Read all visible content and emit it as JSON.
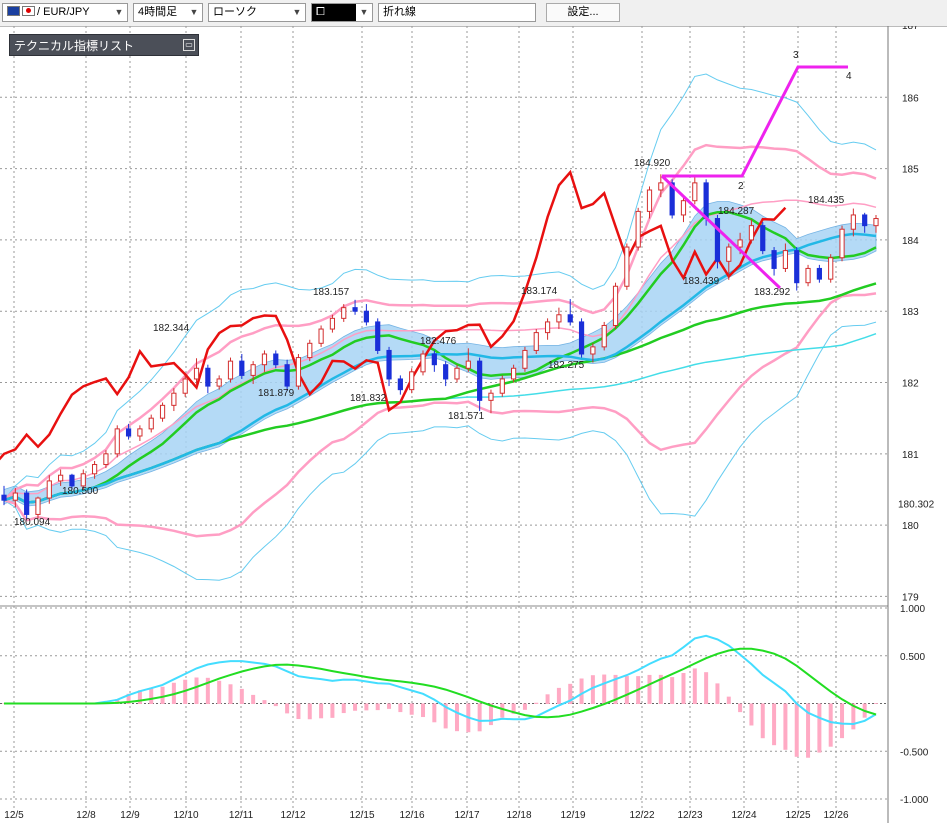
{
  "toolbar": {
    "symbol": "/ EUR/JPY",
    "timeframe": "4時間足",
    "chart_type": "ローソク",
    "style_icon": "白抜きローソク",
    "drawing_tool": "折れ線",
    "settings_label": "設定..."
  },
  "indicator_panel": {
    "title": "テクニカル指標リスト"
  },
  "chart_data": {
    "type": "candlestick",
    "symbol": "EUR/JPY",
    "price_axis": {
      "ticks": [
        179,
        180,
        181,
        182,
        183,
        184,
        185,
        186
      ],
      "top_label": "187",
      "range": [
        178.95,
        187.0
      ],
      "current_price": "180.302"
    },
    "oscillator_axis": {
      "ticks": [
        "1.000",
        "0.500",
        "-0.500",
        "-1.000"
      ],
      "range": [
        -1.0,
        1.0
      ]
    },
    "date_ticks": [
      "12/5",
      "12/8",
      "12/9",
      "12/10",
      "12/11",
      "12/12",
      "12/15",
      "12/16",
      "12/17",
      "12/18",
      "12/19",
      "12/22",
      "12/23",
      "12/24",
      "12/25",
      "12/26"
    ],
    "annotations": [
      "180.094",
      "180.500",
      "182.344",
      "181.879",
      "183.157",
      "181.832",
      "182.476",
      "181.571",
      "183.174",
      "182.275",
      "184.920",
      "184.287",
      "183.439",
      "183.292",
      "184.435"
    ],
    "wave_labels": [
      "2",
      "3",
      "4"
    ],
    "candles": [
      {
        "o": 180.42,
        "h": 180.55,
        "l": 180.28,
        "c": 180.35
      },
      {
        "o": 180.35,
        "h": 180.52,
        "l": 180.25,
        "c": 180.45
      },
      {
        "o": 180.45,
        "h": 180.5,
        "l": 180.09,
        "c": 180.15
      },
      {
        "o": 180.15,
        "h": 180.4,
        "l": 180.09,
        "c": 180.38
      },
      {
        "o": 180.38,
        "h": 180.7,
        "l": 180.3,
        "c": 180.62
      },
      {
        "o": 180.62,
        "h": 180.78,
        "l": 180.55,
        "c": 180.7
      },
      {
        "o": 180.7,
        "h": 180.72,
        "l": 180.5,
        "c": 180.55
      },
      {
        "o": 180.55,
        "h": 180.78,
        "l": 180.5,
        "c": 180.72
      },
      {
        "o": 180.72,
        "h": 180.9,
        "l": 180.65,
        "c": 180.85
      },
      {
        "o": 180.85,
        "h": 181.05,
        "l": 180.8,
        "c": 181.0
      },
      {
        "o": 181.0,
        "h": 181.4,
        "l": 180.95,
        "c": 181.35
      },
      {
        "o": 181.35,
        "h": 181.42,
        "l": 181.2,
        "c": 181.25
      },
      {
        "o": 181.25,
        "h": 181.4,
        "l": 181.18,
        "c": 181.35
      },
      {
        "o": 181.35,
        "h": 181.55,
        "l": 181.3,
        "c": 181.5
      },
      {
        "o": 181.5,
        "h": 181.72,
        "l": 181.45,
        "c": 181.68
      },
      {
        "o": 181.68,
        "h": 181.92,
        "l": 181.6,
        "c": 181.85
      },
      {
        "o": 181.85,
        "h": 182.1,
        "l": 181.8,
        "c": 182.05
      },
      {
        "o": 182.05,
        "h": 182.34,
        "l": 181.95,
        "c": 182.2
      },
      {
        "o": 182.2,
        "h": 182.25,
        "l": 181.85,
        "c": 181.95
      },
      {
        "o": 181.95,
        "h": 182.1,
        "l": 181.9,
        "c": 182.05
      },
      {
        "o": 182.05,
        "h": 182.35,
        "l": 182.0,
        "c": 182.3
      },
      {
        "o": 182.3,
        "h": 182.4,
        "l": 182.05,
        "c": 182.1
      },
      {
        "o": 182.1,
        "h": 182.3,
        "l": 181.98,
        "c": 182.25
      },
      {
        "o": 182.25,
        "h": 182.45,
        "l": 182.15,
        "c": 182.4
      },
      {
        "o": 182.4,
        "h": 182.45,
        "l": 182.2,
        "c": 182.25
      },
      {
        "o": 182.25,
        "h": 182.32,
        "l": 181.88,
        "c": 181.95
      },
      {
        "o": 181.95,
        "h": 182.4,
        "l": 181.9,
        "c": 182.35
      },
      {
        "o": 182.35,
        "h": 182.6,
        "l": 182.3,
        "c": 182.55
      },
      {
        "o": 182.55,
        "h": 182.8,
        "l": 182.5,
        "c": 182.75
      },
      {
        "o": 182.75,
        "h": 182.95,
        "l": 182.7,
        "c": 182.9
      },
      {
        "o": 182.9,
        "h": 183.1,
        "l": 182.85,
        "c": 183.05
      },
      {
        "o": 183.05,
        "h": 183.16,
        "l": 182.95,
        "c": 183.0
      },
      {
        "o": 183.0,
        "h": 183.1,
        "l": 182.8,
        "c": 182.85
      },
      {
        "o": 182.85,
        "h": 182.9,
        "l": 182.4,
        "c": 182.45
      },
      {
        "o": 182.45,
        "h": 182.5,
        "l": 181.95,
        "c": 182.05
      },
      {
        "o": 182.05,
        "h": 182.1,
        "l": 181.83,
        "c": 181.9
      },
      {
        "o": 181.9,
        "h": 182.2,
        "l": 181.85,
        "c": 182.15
      },
      {
        "o": 182.15,
        "h": 182.45,
        "l": 182.1,
        "c": 182.4
      },
      {
        "o": 182.4,
        "h": 182.45,
        "l": 182.15,
        "c": 182.25
      },
      {
        "o": 182.25,
        "h": 182.3,
        "l": 181.95,
        "c": 182.05
      },
      {
        "o": 182.05,
        "h": 182.25,
        "l": 182.0,
        "c": 182.2
      },
      {
        "o": 182.2,
        "h": 182.48,
        "l": 182.15,
        "c": 182.3
      },
      {
        "o": 182.3,
        "h": 182.35,
        "l": 181.6,
        "c": 181.75
      },
      {
        "o": 181.75,
        "h": 181.9,
        "l": 181.57,
        "c": 181.85
      },
      {
        "o": 181.85,
        "h": 182.1,
        "l": 181.8,
        "c": 182.05
      },
      {
        "o": 182.05,
        "h": 182.25,
        "l": 182.0,
        "c": 182.2
      },
      {
        "o": 182.2,
        "h": 182.5,
        "l": 182.15,
        "c": 182.45
      },
      {
        "o": 182.45,
        "h": 182.75,
        "l": 182.4,
        "c": 182.7
      },
      {
        "o": 182.7,
        "h": 182.9,
        "l": 182.6,
        "c": 182.85
      },
      {
        "o": 182.85,
        "h": 183.05,
        "l": 182.75,
        "c": 182.95
      },
      {
        "o": 182.95,
        "h": 183.17,
        "l": 182.8,
        "c": 182.85
      },
      {
        "o": 182.85,
        "h": 182.9,
        "l": 182.35,
        "c": 182.4
      },
      {
        "o": 182.4,
        "h": 182.55,
        "l": 182.28,
        "c": 182.5
      },
      {
        "o": 182.5,
        "h": 182.85,
        "l": 182.45,
        "c": 182.8
      },
      {
        "o": 182.8,
        "h": 183.4,
        "l": 182.75,
        "c": 183.35
      },
      {
        "o": 183.35,
        "h": 183.95,
        "l": 183.3,
        "c": 183.9
      },
      {
        "o": 183.9,
        "h": 184.45,
        "l": 183.85,
        "c": 184.4
      },
      {
        "o": 184.4,
        "h": 184.75,
        "l": 184.3,
        "c": 184.7
      },
      {
        "o": 184.7,
        "h": 184.92,
        "l": 184.6,
        "c": 184.8
      },
      {
        "o": 184.8,
        "h": 184.85,
        "l": 184.3,
        "c": 184.35
      },
      {
        "o": 184.35,
        "h": 184.6,
        "l": 184.25,
        "c": 184.55
      },
      {
        "o": 184.55,
        "h": 184.9,
        "l": 184.5,
        "c": 184.8
      },
      {
        "o": 184.8,
        "h": 184.85,
        "l": 184.2,
        "c": 184.3
      },
      {
        "o": 184.3,
        "h": 184.35,
        "l": 183.6,
        "c": 183.7
      },
      {
        "o": 183.7,
        "h": 183.95,
        "l": 183.44,
        "c": 183.9
      },
      {
        "o": 183.9,
        "h": 184.1,
        "l": 183.8,
        "c": 184.0
      },
      {
        "o": 184.0,
        "h": 184.29,
        "l": 183.95,
        "c": 184.2
      },
      {
        "o": 184.2,
        "h": 184.25,
        "l": 183.8,
        "c": 183.85
      },
      {
        "o": 183.85,
        "h": 183.9,
        "l": 183.5,
        "c": 183.6
      },
      {
        "o": 183.6,
        "h": 183.95,
        "l": 183.55,
        "c": 183.85
      },
      {
        "o": 183.85,
        "h": 183.9,
        "l": 183.29,
        "c": 183.4
      },
      {
        "o": 183.4,
        "h": 183.65,
        "l": 183.35,
        "c": 183.6
      },
      {
        "o": 183.6,
        "h": 183.65,
        "l": 183.4,
        "c": 183.45
      },
      {
        "o": 183.45,
        "h": 183.8,
        "l": 183.4,
        "c": 183.75
      },
      {
        "o": 183.75,
        "h": 184.2,
        "l": 183.7,
        "c": 184.15
      },
      {
        "o": 184.15,
        "h": 184.44,
        "l": 184.05,
        "c": 184.35
      },
      {
        "o": 184.35,
        "h": 184.38,
        "l": 184.1,
        "c": 184.2
      },
      {
        "o": 184.2,
        "h": 184.35,
        "l": 184.1,
        "c": 184.3
      }
    ],
    "colors": {
      "up": "#d32f2f",
      "down": "#1a2fd8",
      "close_line": "#e81010",
      "ma_green": "#22cc22",
      "ma_cyan": "#22b8e6",
      "band_pink": "#ff9ec4",
      "band_outer": "#66ccf0",
      "cloud": "#a8d4f5",
      "wave": "#ee22ee",
      "macd": "#44ddff",
      "signal": "#22dd22",
      "hist": "#ffaac4"
    }
  }
}
